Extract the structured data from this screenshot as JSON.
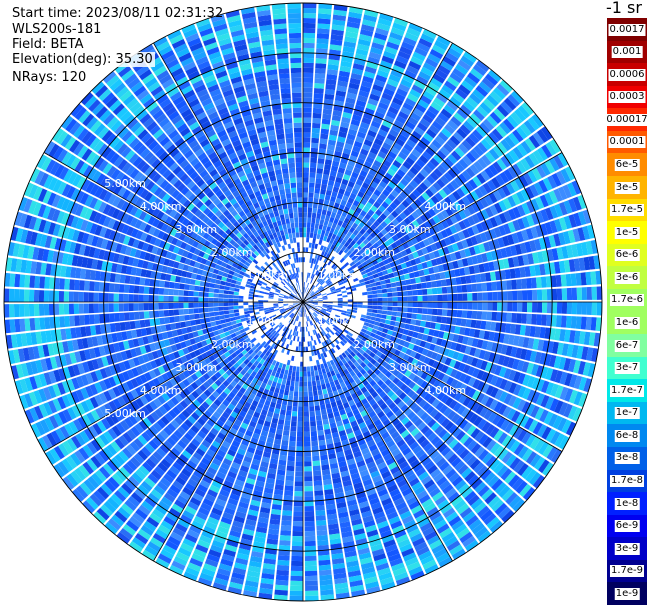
{
  "header": {
    "start_time": "Start time: 2023/08/11 02:31:32",
    "device": "WLS200s-181",
    "field": "Field: BETA",
    "elevation": "Elevation(deg): 35.30",
    "nrays": "NRays: 120"
  },
  "colorbar": {
    "unit_label": "-1 sr",
    "colors": [
      "#800000",
      "#a00000",
      "#c80000",
      "#f00000",
      "#ff2800",
      "#ff5a00",
      "#ff8c00",
      "#ffb400",
      "#ffdc00",
      "#ffff00",
      "#e0ff20",
      "#c0ff40",
      "#a0ff60",
      "#80ffa0",
      "#40ffd0",
      "#00e8e8",
      "#00b8f0",
      "#0088f0",
      "#0060e8",
      "#0040e0",
      "#0020ff",
      "#0000f0",
      "#0000c8",
      "#000090",
      "#000060"
    ],
    "labels": [
      "0.0017",
      "0.001",
      "0.0006",
      "0.0003",
      "0.00017",
      "0.0001",
      "6e-5",
      "3e-5",
      "1.7e-5",
      "1e-5",
      "6e-6",
      "3e-6",
      "1.7e-6",
      "1e-6",
      "6e-7",
      "3e-7",
      "1.7e-7",
      "1e-7",
      "6e-8",
      "3e-8",
      "1.7e-8",
      "1e-8",
      "6e-9",
      "3e-9",
      "1.7e-9",
      "1e-9"
    ]
  },
  "chart_data": {
    "type": "heatmap",
    "projection": "polar",
    "nrays": 120,
    "range_unit": "km",
    "range_max_km": 6.0,
    "range_rings_km": [
      1.0,
      2.0,
      3.0,
      4.0,
      5.0,
      6.0
    ],
    "ring_labels": [
      "1.00km",
      "2.00km",
      "3.00km",
      "4.00km",
      "5.00km"
    ],
    "spoke_interval_deg": 30,
    "value_range": [
      1e-09,
      0.0017
    ],
    "scale": "log",
    "dominant_values": [
      "6e-9",
      "1.7e-7"
    ]
  }
}
